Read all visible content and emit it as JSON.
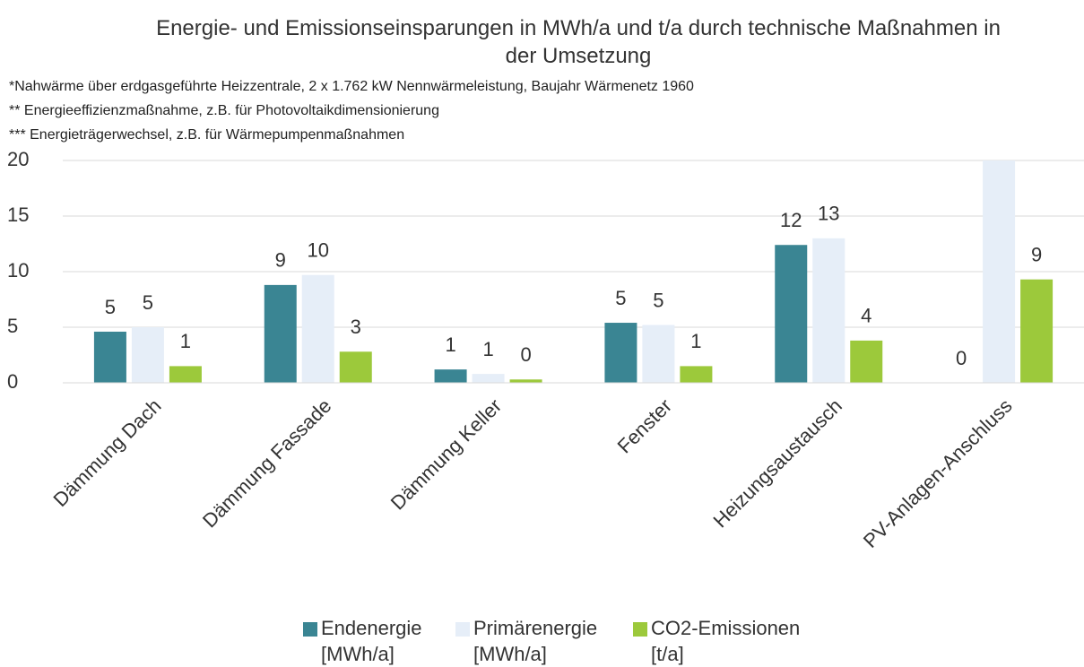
{
  "chart_data": {
    "type": "bar",
    "title": "Energie- und Emissionseinsparungen in MWh/a und t/a durch technische Maßnahmen in der Umsetzung",
    "notes": [
      "*Nahwärme über erdgasgeführte Heizzentrale, 2 x 1.762 kW Nennwärmeleistung, Baujahr Wärmenetz 1960",
      "** Energieeffizienzmaßnahme, z.B. für Photovoltaikdimensionierung",
      "*** Energieträgerwechsel, z.B. für Wärmepumpenmaßnahmen"
    ],
    "categories": [
      "Dämmung Dach",
      "Dämmung Fassade",
      "Dämmung Keller",
      "Fenster",
      "Heizungsaustausch",
      "PV-Anlagen-Anschluss"
    ],
    "series": [
      {
        "name": "Endenergie [MWh/a]",
        "color": "#3a8593",
        "values": [
          4.6,
          8.8,
          1.2,
          5.4,
          12.4,
          0
        ],
        "value_labels": [
          "5",
          "9",
          "1",
          "5",
          "12",
          "0"
        ]
      },
      {
        "name": "Primärenergie [MWh/a]",
        "color": "#e6eef8",
        "values": [
          5.0,
          9.7,
          0.8,
          5.2,
          13.0,
          20
        ],
        "value_labels": [
          "5",
          "10",
          "1",
          "5",
          "13",
          null
        ]
      },
      {
        "name": "CO2-Emissionen [t/a]",
        "color": "#9cc93b",
        "values": [
          1.5,
          2.8,
          0.3,
          1.5,
          3.8,
          9.3
        ],
        "value_labels": [
          "1",
          "3",
          "0",
          "1",
          "4",
          "9"
        ]
      }
    ],
    "ylim": [
      0,
      20
    ],
    "yticks": [
      0,
      5,
      10,
      15,
      20
    ],
    "grid": true,
    "legend": "bottom"
  }
}
